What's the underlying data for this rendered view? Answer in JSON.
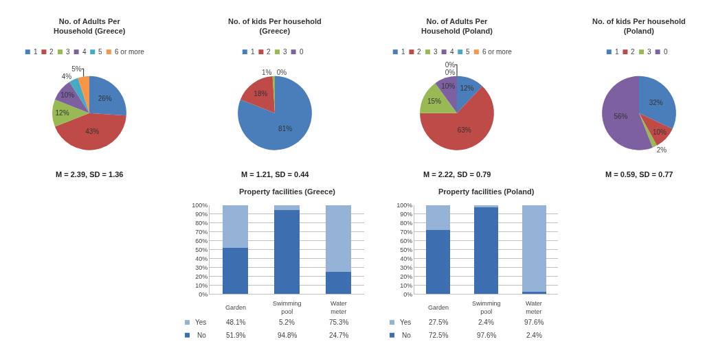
{
  "chart_data": [
    {
      "type": "pie",
      "title": "No. of Adults Per Household (Greece)",
      "categories": [
        "1",
        "2",
        "3",
        "4",
        "5",
        "6 or more"
      ],
      "values": [
        26,
        43,
        12,
        10,
        4,
        5
      ],
      "colors": [
        "#4a7ebb",
        "#be4b48",
        "#98b954",
        "#7d60a0",
        "#46aac5",
        "#f79646"
      ],
      "value_labels": [
        "26%",
        "43%",
        "12%",
        "10%",
        "4%",
        "5%"
      ],
      "legend": "top",
      "annotations": [
        "M = 2.39, SD = 1.36"
      ]
    },
    {
      "type": "pie",
      "title": "No. of kids Per household (Greece)",
      "categories": [
        "1",
        "2",
        "3",
        "0"
      ],
      "values": [
        81,
        18,
        1,
        0
      ],
      "colors": [
        "#4a7ebb",
        "#be4b48",
        "#98b954",
        "#7d60a0"
      ],
      "value_labels": [
        "81%",
        "18%",
        "1%",
        "0%"
      ],
      "legend": "top",
      "annotations": [
        "M = 1.21, SD = 0.44"
      ]
    },
    {
      "type": "pie",
      "title": "No. of Adults Per Household (Poland)",
      "categories": [
        "1",
        "2",
        "3",
        "4",
        "5",
        "6 or more"
      ],
      "values": [
        12,
        63,
        15,
        10,
        0,
        0
      ],
      "colors": [
        "#4a7ebb",
        "#be4b48",
        "#98b954",
        "#7d60a0",
        "#46aac5",
        "#f79646"
      ],
      "value_labels": [
        "12%",
        "63%",
        "15%",
        "10%",
        "0%",
        "0%"
      ],
      "legend": "top",
      "annotations": [
        "M = 2.22, SD = 0.79"
      ]
    },
    {
      "type": "pie",
      "title": "No. of kids Per household (Poland)",
      "categories": [
        "1",
        "2",
        "3",
        "0"
      ],
      "values": [
        32,
        10,
        2,
        56
      ],
      "colors": [
        "#4a7ebb",
        "#be4b48",
        "#98b954",
        "#7d60a0"
      ],
      "value_labels": [
        "32%",
        "10%",
        "2%",
        "56%"
      ],
      "legend": "top",
      "annotations": [
        "M = 0.59, SD = 0.77"
      ]
    },
    {
      "type": "bar",
      "title": "Property facilities (Greece)",
      "categories": [
        "Garden",
        "Swimming pool",
        "Water meter"
      ],
      "stacked": true,
      "series": [
        {
          "name": "No",
          "color": "#3d6eb0",
          "values": [
            51.9,
            94.8,
            24.7
          ],
          "value_labels": [
            "51.9%",
            "94.8%",
            "24.7%"
          ]
        },
        {
          "name": "Yes",
          "color": "#95b3d7",
          "values": [
            48.1,
            5.2,
            75.3
          ],
          "value_labels": [
            "48.1%",
            "5.2%",
            "75.3%"
          ]
        }
      ],
      "ylim": [
        0,
        100
      ],
      "yticks": [
        {
          "value": 0,
          "label": "0%"
        },
        {
          "value": 10,
          "label": "10%"
        },
        {
          "value": 20,
          "label": "20%"
        },
        {
          "value": 30,
          "label": "30%"
        },
        {
          "value": 40,
          "label": "40%"
        },
        {
          "value": 50,
          "label": "50%"
        },
        {
          "value": 60,
          "label": "60%"
        },
        {
          "value": 70,
          "label": "70%"
        },
        {
          "value": 80,
          "label": "80%"
        },
        {
          "value": 90,
          "label": "90%"
        },
        {
          "value": 100,
          "label": "100%"
        }
      ],
      "grid": "y",
      "legend": "bottom"
    },
    {
      "type": "bar",
      "title": "Property facilities (Poland)",
      "categories": [
        "Garden",
        "Swimming pool",
        "Water meter"
      ],
      "stacked": true,
      "series": [
        {
          "name": "No",
          "color": "#3d6eb0",
          "values": [
            72.5,
            97.6,
            2.4
          ],
          "value_labels": [
            "72.5%",
            "97.6%",
            "2.4%"
          ]
        },
        {
          "name": "Yes",
          "color": "#95b3d7",
          "values": [
            27.5,
            2.4,
            97.6
          ],
          "value_labels": [
            "27.5%",
            "2.4%",
            "97.6%"
          ]
        }
      ],
      "ylim": [
        0,
        100
      ],
      "yticks": [
        {
          "value": 0,
          "label": "0%"
        },
        {
          "value": 10,
          "label": "10%"
        },
        {
          "value": 20,
          "label": "20%"
        },
        {
          "value": 30,
          "label": "30%"
        },
        {
          "value": 40,
          "label": "40%"
        },
        {
          "value": 50,
          "label": "50%"
        },
        {
          "value": 60,
          "label": "60%"
        },
        {
          "value": 70,
          "label": "70%"
        },
        {
          "value": 80,
          "label": "80%"
        },
        {
          "value": 90,
          "label": "90%"
        },
        {
          "value": 100,
          "label": "100%"
        }
      ],
      "grid": "y",
      "legend": "bottom"
    }
  ]
}
